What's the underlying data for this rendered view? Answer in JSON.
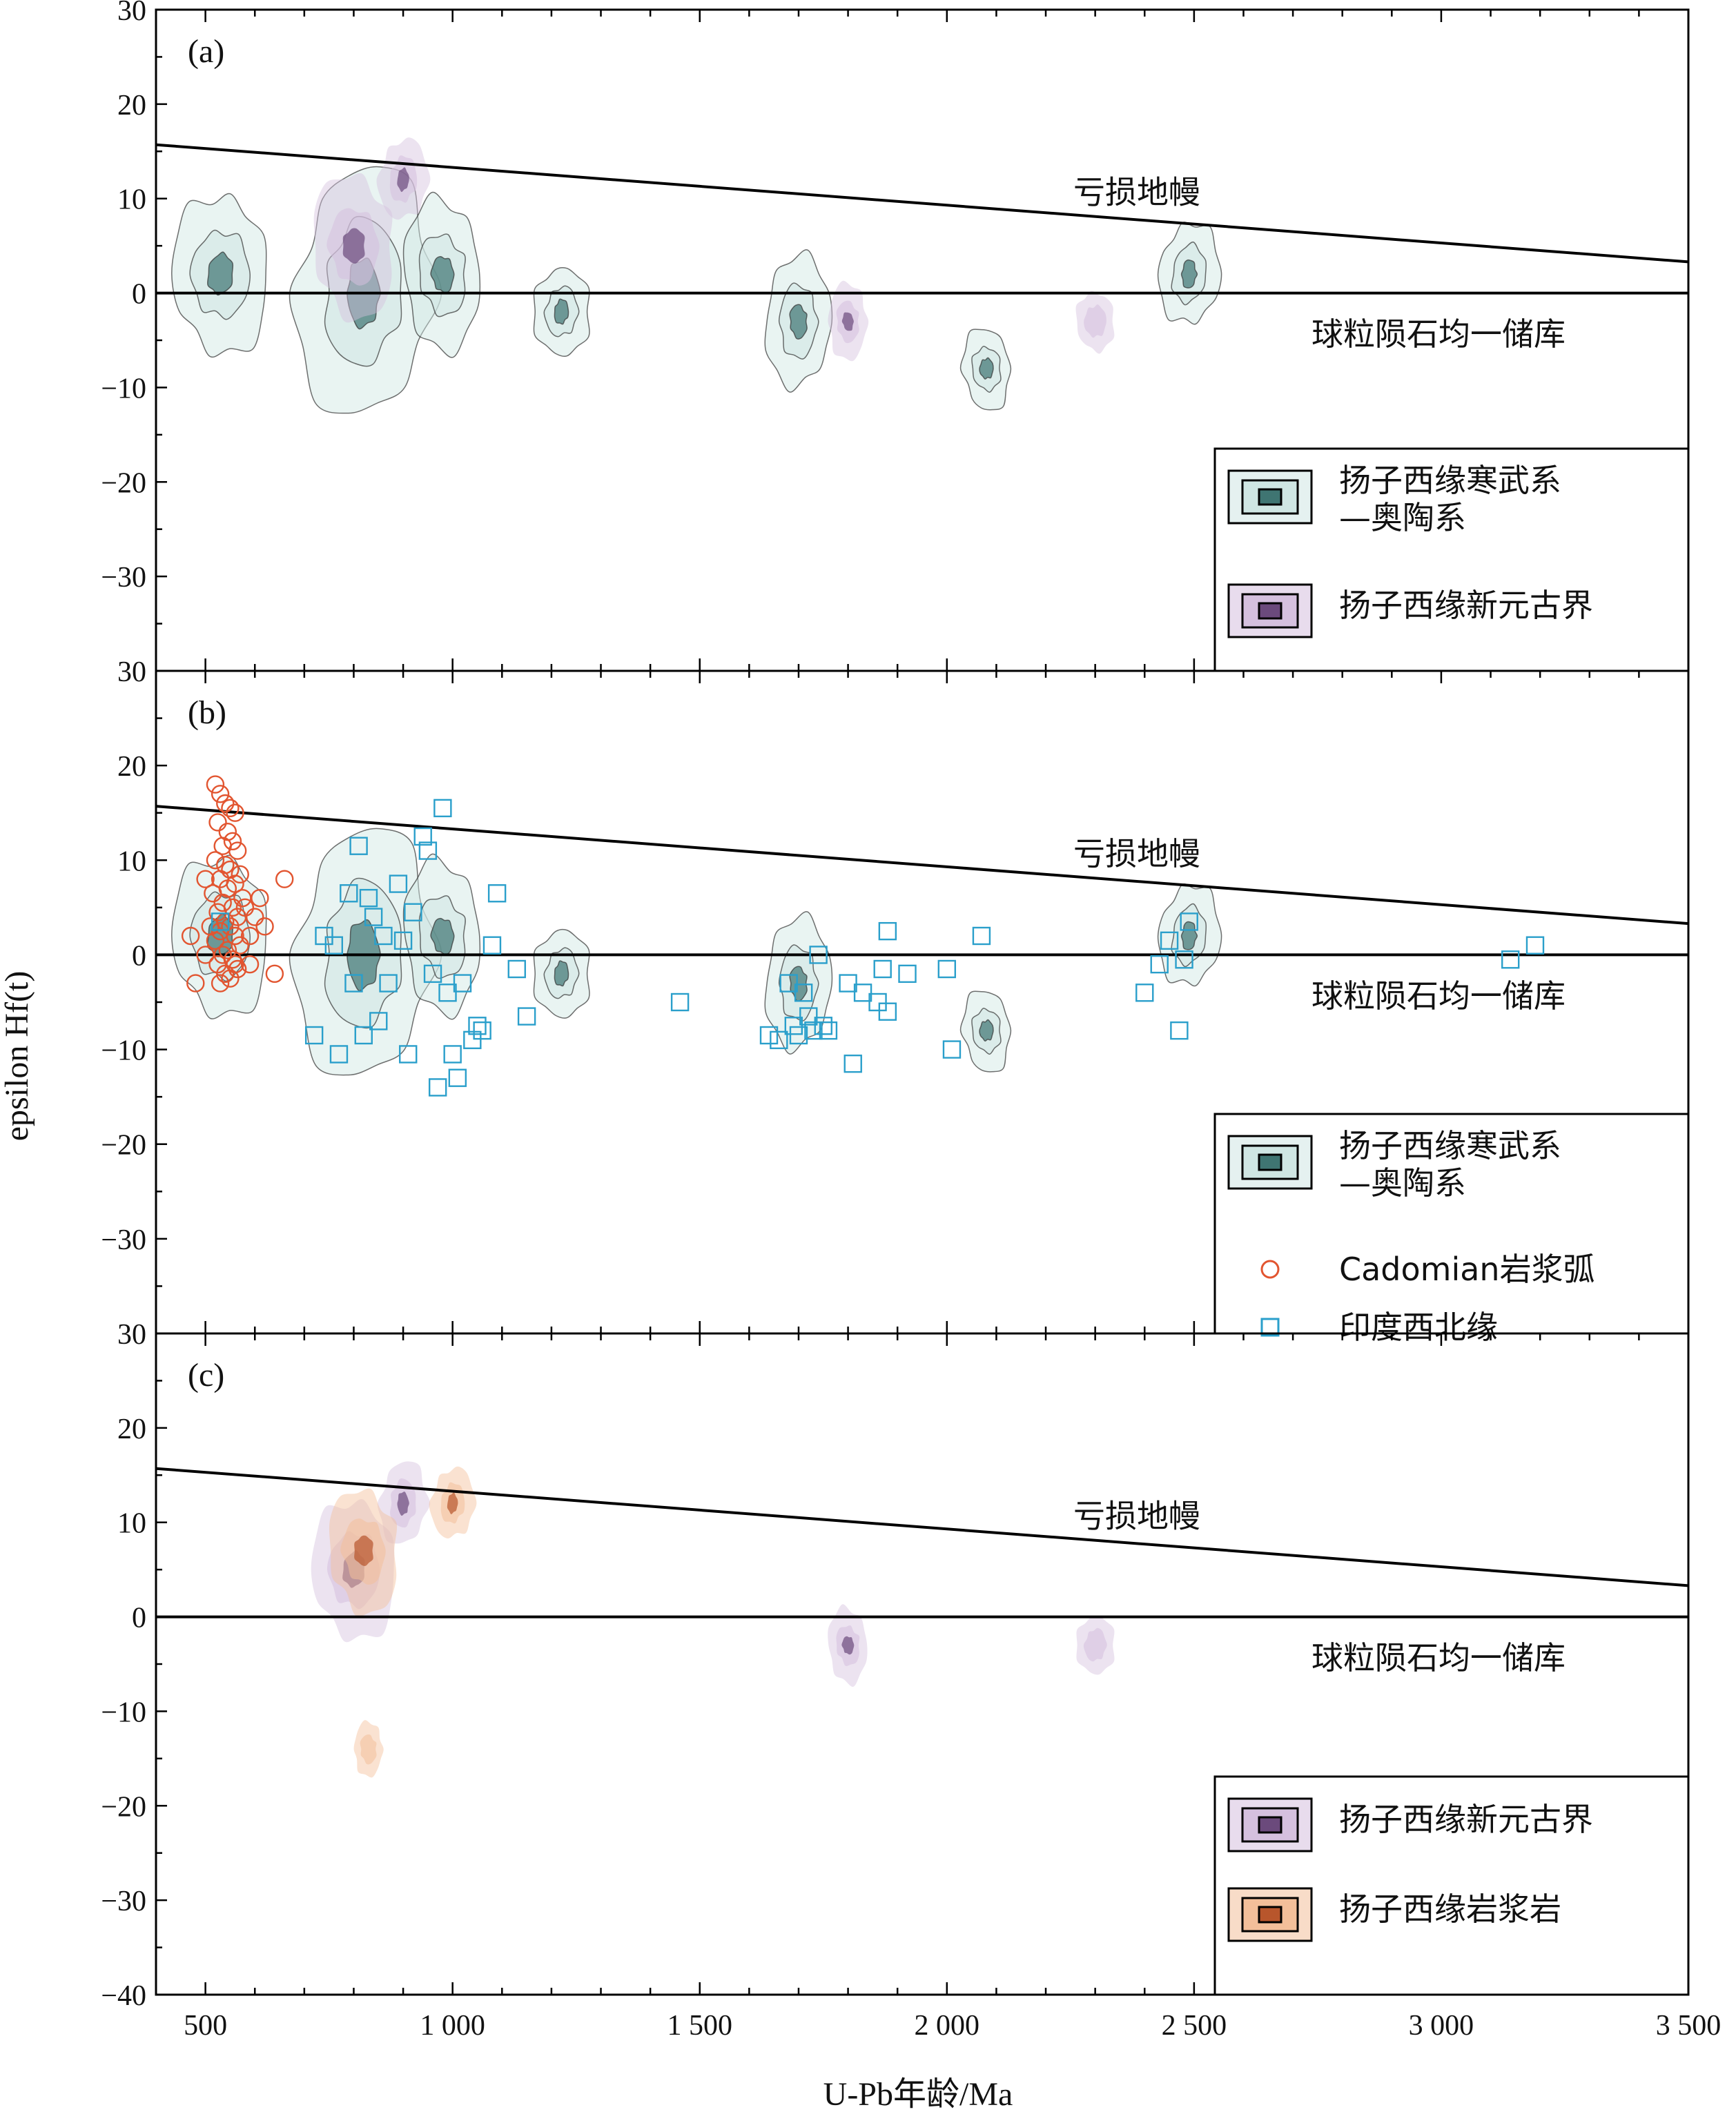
{
  "colors": {
    "cambrian_ordovician": "#cfe6e3",
    "cambrian_ordovician_dark": "#3f7572",
    "neoproterozoic": "#d5c0de",
    "neoproterozoic_dark": "#6b4a7c",
    "magmatic": "#f3bf9a",
    "magmatic_dark": "#b8562c",
    "cadomian": "#e25530",
    "nw_india": "#2a9fcb"
  },
  "chart_data": {
    "type": "scatter",
    "xlabel": "U-Pb年龄/Ma",
    "ylabel": "epsilon Hf(t)",
    "xlim": [
      400,
      3500
    ],
    "x_ticks": [
      500,
      1000,
      1500,
      2000,
      2500,
      3000,
      3500
    ],
    "x_tick_labels": [
      "500",
      "1 000",
      "1 500",
      "2 000",
      "2 500",
      "3 000",
      "3 500"
    ],
    "panels": [
      {
        "label": "(a)",
        "ylim": [
          -40,
          30
        ],
        "y_ticks": [
          30,
          20,
          10,
          0,
          -10,
          -20,
          -30
        ],
        "y_tick_labels": [
          "30",
          "20",
          "10",
          "0",
          "−10",
          "−20",
          "−30"
        ],
        "reference_lines": [
          {
            "name": "亏损地幔",
            "x": [
              400,
              3500
            ],
            "y": [
              15.7,
              3.3
            ]
          },
          {
            "name": "球粒陨石均一储库",
            "x": [
              400,
              3500
            ],
            "y": [
              0,
              0
            ]
          }
        ],
        "density_series": [
          {
            "name": "扬子西缘寒武系—奥陶系",
            "color_key": "cambrian_ordovician",
            "clusters": [
              [
                530,
                2,
                12
              ],
              [
                820,
                0,
                20
              ],
              [
                980,
                2,
                10
              ],
              [
                1220,
                -2,
                5
              ],
              [
                1700,
                -3,
                8
              ],
              [
                2080,
                -8,
                4
              ],
              [
                2490,
                2,
                6
              ]
            ]
          },
          {
            "name": "扬子西缘新元古界",
            "color_key": "neoproterozoic",
            "clusters": [
              [
                800,
                5,
                10
              ],
              [
                900,
                12,
                4
              ],
              [
                1800,
                -3,
                3
              ],
              [
                2300,
                -3,
                2
              ]
            ]
          }
        ],
        "legend": [
          {
            "label_lines": [
              "扬子西缘寒武系",
              "—奥陶系"
            ],
            "kind": "density",
            "color_key": "cambrian_ordovician"
          },
          {
            "label_lines": [
              "扬子西缘新元古界"
            ],
            "kind": "density",
            "color_key": "neoproterozoic"
          }
        ]
      },
      {
        "label": "(b)",
        "ylim": [
          -40,
          30
        ],
        "y_ticks": [
          30,
          20,
          10,
          0,
          -10,
          -20,
          -30
        ],
        "y_tick_labels": [
          "30",
          "20",
          "10",
          "0",
          "−10",
          "−20",
          "−30"
        ],
        "reference_lines": [
          {
            "name": "亏损地幔",
            "x": [
              400,
              3500
            ],
            "y": [
              15.7,
              3.3
            ]
          },
          {
            "name": "球粒陨石均一储库",
            "x": [
              400,
              3500
            ],
            "y": [
              0,
              0
            ]
          }
        ],
        "density_series": [
          {
            "name": "扬子西缘寒武系—奥陶系",
            "color_key": "cambrian_ordovician",
            "clusters": [
              [
                530,
                2,
                12
              ],
              [
                820,
                0,
                20
              ],
              [
                980,
                2,
                10
              ],
              [
                1220,
                -2,
                5
              ],
              [
                1700,
                -3,
                8
              ],
              [
                2080,
                -8,
                4
              ],
              [
                2490,
                2,
                6
              ]
            ]
          }
        ],
        "scatter_series": [
          {
            "name": "Cadomian岩浆弧",
            "marker": "circle",
            "color_key": "cadomian",
            "points": [
              [
                520,
                18
              ],
              [
                530,
                17
              ],
              [
                540,
                16
              ],
              [
                550,
                15.5
              ],
              [
                560,
                15
              ],
              [
                525,
                14
              ],
              [
                545,
                13
              ],
              [
                555,
                12
              ],
              [
                535,
                11.5
              ],
              [
                565,
                11
              ],
              [
                520,
                10
              ],
              [
                540,
                9.5
              ],
              [
                550,
                9
              ],
              [
                570,
                8.5
              ],
              [
                530,
                8
              ],
              [
                560,
                7.5
              ],
              [
                545,
                7
              ],
              [
                515,
                6.5
              ],
              [
                575,
                6
              ],
              [
                535,
                5.5
              ],
              [
                555,
                5
              ],
              [
                525,
                4.5
              ],
              [
                565,
                4
              ],
              [
                540,
                3.5
              ],
              [
                550,
                3
              ],
              [
                530,
                2.5
              ],
              [
                560,
                2
              ],
              [
                520,
                1.5
              ],
              [
                570,
                1
              ],
              [
                545,
                0.5
              ],
              [
                535,
                0
              ],
              [
                555,
                -0.5
              ],
              [
                525,
                -1
              ],
              [
                565,
                -1.5
              ],
              [
                540,
                -2
              ],
              [
                550,
                -2.5
              ],
              [
                530,
                -3
              ],
              [
                560,
                -1
              ],
              [
                510,
                3
              ],
              [
                580,
                5
              ],
              [
                590,
                2
              ],
              [
                600,
                4
              ],
              [
                500,
                0
              ],
              [
                480,
                -3
              ],
              [
                620,
                3
              ],
              [
                640,
                -2
              ],
              [
                660,
                8
              ],
              [
                590,
                -1
              ],
              [
                610,
                6
              ],
              [
                500,
                8
              ],
              [
                470,
                2
              ]
            ]
          },
          {
            "name": "印度西北缘",
            "marker": "square",
            "color_key": "nw_india",
            "points": [
              [
                530,
                3.5
              ],
              [
                720,
                -8.5
              ],
              [
                740,
                2
              ],
              [
                760,
                1
              ],
              [
                770,
                -10.5
              ],
              [
                790,
                6.5
              ],
              [
                800,
                -3
              ],
              [
                810,
                11.5
              ],
              [
                820,
                -8.5
              ],
              [
                830,
                6
              ],
              [
                840,
                4
              ],
              [
                850,
                -7
              ],
              [
                860,
                2
              ],
              [
                870,
                -3
              ],
              [
                890,
                7.5
              ],
              [
                900,
                1.5
              ],
              [
                910,
                -10.5
              ],
              [
                920,
                4.5
              ],
              [
                940,
                12.5
              ],
              [
                950,
                11
              ],
              [
                960,
                -2
              ],
              [
                970,
                -14
              ],
              [
                980,
                15.5
              ],
              [
                990,
                -4
              ],
              [
                1000,
                -10.5
              ],
              [
                1010,
                -13
              ],
              [
                1020,
                -3
              ],
              [
                1040,
                -9
              ],
              [
                1050,
                -7.5
              ],
              [
                1060,
                -8
              ],
              [
                1080,
                1
              ],
              [
                1090,
                6.5
              ],
              [
                1130,
                -1.5
              ],
              [
                1150,
                -6.5
              ],
              [
                1460,
                -5
              ],
              [
                1640,
                -8.5
              ],
              [
                1660,
                -9
              ],
              [
                1680,
                -3
              ],
              [
                1690,
                -7.5
              ],
              [
                1700,
                -8.5
              ],
              [
                1710,
                -4
              ],
              [
                1720,
                -6.5
              ],
              [
                1730,
                -8
              ],
              [
                1740,
                0
              ],
              [
                1750,
                -7.5
              ],
              [
                1760,
                -8
              ],
              [
                1800,
                -3
              ],
              [
                1810,
                -11.5
              ],
              [
                1830,
                -4
              ],
              [
                1860,
                -5
              ],
              [
                1870,
                -1.5
              ],
              [
                1880,
                -6
              ],
              [
                1880,
                2.5
              ],
              [
                1920,
                -2
              ],
              [
                2000,
                -1.5
              ],
              [
                2010,
                -10
              ],
              [
                2070,
                2
              ],
              [
                2400,
                -4
              ],
              [
                2430,
                -1
              ],
              [
                2450,
                1.5
              ],
              [
                2470,
                -8
              ],
              [
                2480,
                -0.5
              ],
              [
                2490,
                3.5
              ],
              [
                3140,
                -0.5
              ],
              [
                3190,
                1
              ]
            ]
          }
        ],
        "legend": [
          {
            "label_lines": [
              "扬子西缘寒武系",
              "—奥陶系"
            ],
            "kind": "density",
            "color_key": "cambrian_ordovician"
          },
          {
            "label_lines": [
              "Cadomian岩浆弧"
            ],
            "kind": "circle",
            "color_key": "cadomian"
          },
          {
            "label_lines": [
              "印度西北缘"
            ],
            "kind": "square",
            "color_key": "nw_india"
          }
        ]
      },
      {
        "label": "(c)",
        "ylim": [
          -40,
          30
        ],
        "y_ticks": [
          30,
          20,
          10,
          0,
          -10,
          -20,
          -30,
          -40
        ],
        "y_tick_labels": [
          "30",
          "20",
          "10",
          "0",
          "−10",
          "−20",
          "−30",
          "−40"
        ],
        "reference_lines": [
          {
            "name": "亏损地幔",
            "x": [
              400,
              3500
            ],
            "y": [
              15.7,
              3.3
            ]
          },
          {
            "name": "球粒陨石均一储库",
            "x": [
              400,
              3500
            ],
            "y": [
              0,
              0
            ]
          }
        ],
        "density_series": [
          {
            "name": "扬子西缘新元古界",
            "color_key": "neoproterozoic",
            "clusters": [
              [
                800,
                5,
                10
              ],
              [
                900,
                12,
                4
              ],
              [
                1800,
                -3,
                3
              ],
              [
                2300,
                -3,
                2
              ]
            ]
          },
          {
            "name": "扬子西缘岩浆岩",
            "color_key": "magmatic",
            "clusters": [
              [
                820,
                7,
                8
              ],
              [
                1000,
                12,
                3
              ],
              [
                830,
                -14,
                1
              ]
            ]
          }
        ],
        "legend": [
          {
            "label_lines": [
              "扬子西缘新元古界"
            ],
            "kind": "density",
            "color_key": "neoproterozoic"
          },
          {
            "label_lines": [
              "扬子西缘岩浆岩"
            ],
            "kind": "density",
            "color_key": "magmatic"
          }
        ]
      }
    ]
  }
}
